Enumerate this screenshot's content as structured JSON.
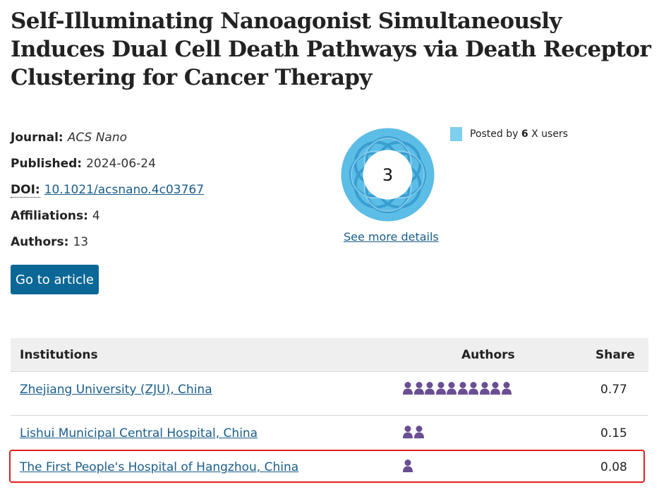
{
  "article": {
    "title": "Self-Illuminating Nanoagonist Simultaneously Induces Dual Cell Death Pathways via Death Receptor Clustering for Cancer Therapy",
    "journal_label": "Journal:",
    "journal": "ACS Nano",
    "published_label": "Published:",
    "published": "2024-06-24",
    "doi_label": "DOI:",
    "doi": "10.1021/acsnano.4c03767",
    "affiliations_label": "Affiliations:",
    "affiliations": "4",
    "authors_label": "Authors:",
    "authors": "13",
    "go_button": "Go to article"
  },
  "altmetric": {
    "score": "3",
    "see_more": "See more details",
    "legend_prefix": "Posted by ",
    "legend_count": "6",
    "legend_suffix": " X users",
    "colors": {
      "donut": "#5cbde6",
      "donut_dark": "#2d93c9",
      "legend": "#7fcfee"
    }
  },
  "table": {
    "headers": {
      "institutions": "Institutions",
      "authors": "Authors",
      "share": "Share"
    },
    "rows": [
      {
        "institution": "Zhejiang University (ZJU), China",
        "author_count": 10,
        "share": "0.77"
      },
      {
        "institution": "Lishui Municipal Central Hospital, China",
        "author_count": 2,
        "share": "0.15"
      },
      {
        "institution": "The First People's Hospital of Hangzhou, China",
        "author_count": 1,
        "share": "0.08"
      }
    ],
    "icon_color": "#6a4e93",
    "highlight_color": "#e0211e"
  }
}
